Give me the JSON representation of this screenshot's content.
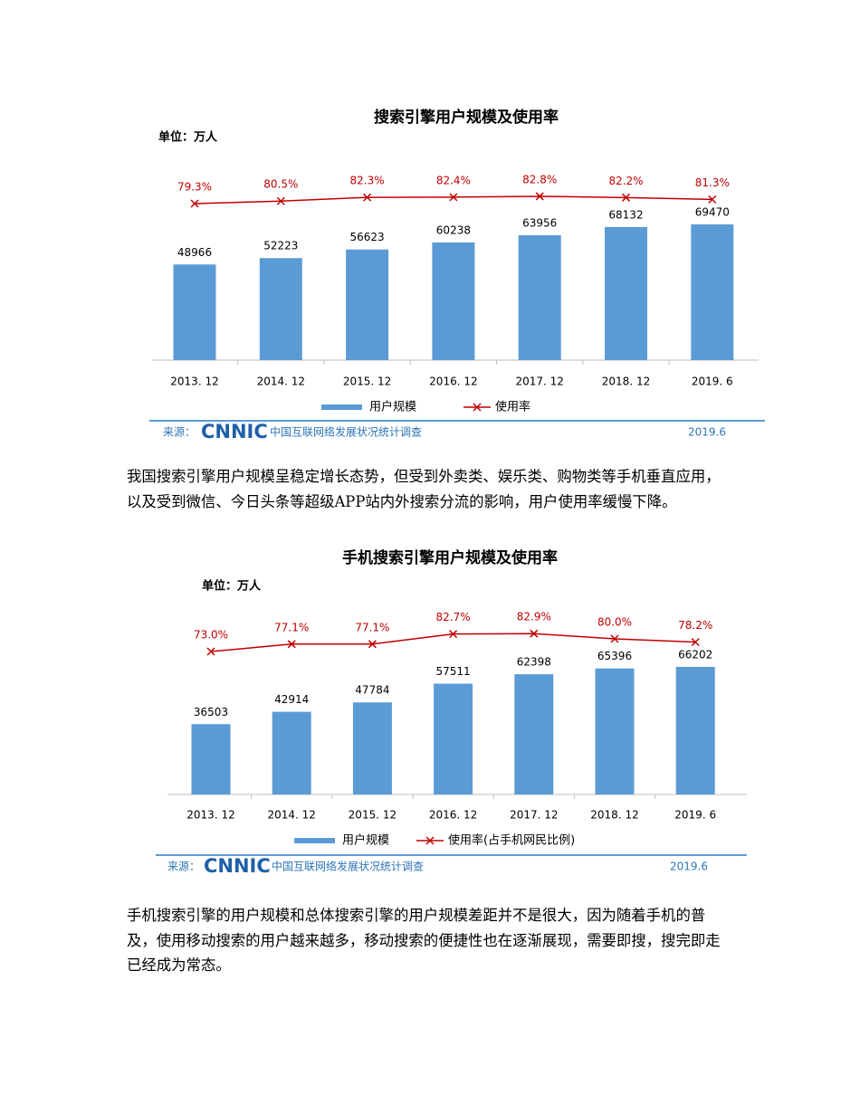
{
  "chart_data": [
    {
      "type": "bar-line",
      "title": "搜索引擎用户规模及使用率",
      "unit": "单位：万人",
      "categories": [
        "2013. 12",
        "2014. 12",
        "2015. 12",
        "2016. 12",
        "2017. 12",
        "2018. 12",
        "2019. 6"
      ],
      "series": [
        {
          "name": "用户规模",
          "type": "bar",
          "color": "#5b9bd5",
          "values": [
            48966,
            52223,
            56623,
            60238,
            63956,
            68132,
            69470
          ]
        },
        {
          "name": "使用率",
          "type": "line",
          "color": "#c00000",
          "values": [
            79.3,
            80.5,
            82.3,
            82.4,
            82.8,
            82.2,
            81.3
          ],
          "value_labels": [
            "79.3%",
            "80.5%",
            "82.3%",
            "82.4%",
            "82.8%",
            "82.2%",
            "81.3%"
          ]
        }
      ],
      "source": {
        "label": "来源：",
        "logo": "CNNIC",
        "text": "中国互联网络发展状况统计调查",
        "date": "2019.6"
      }
    },
    {
      "type": "bar-line",
      "title": "手机搜索引擎用户规模及使用率",
      "unit": "单位：万人",
      "categories": [
        "2013. 12",
        "2014. 12",
        "2015. 12",
        "2016. 12",
        "2017. 12",
        "2018. 12",
        "2019. 6"
      ],
      "series": [
        {
          "name": "用户规模",
          "type": "bar",
          "color": "#5b9bd5",
          "values": [
            36503,
            42914,
            47784,
            57511,
            62398,
            65396,
            66202
          ]
        },
        {
          "name": "使用率(占手机网民比例)",
          "type": "line",
          "color": "#c00000",
          "values": [
            73.0,
            77.1,
            77.1,
            82.7,
            82.9,
            80.0,
            78.2
          ],
          "value_labels": [
            "73.0%",
            "77.1%",
            "77.1%",
            "82.7%",
            "82.9%",
            "80.0%",
            "78.2%"
          ]
        }
      ],
      "source": {
        "label": "来源：",
        "logo": "CNNIC",
        "text": "中国互联网络发展状况统计调查",
        "date": "2019.6"
      }
    }
  ],
  "paragraphs": [
    "我国搜索引擎用户规模呈稳定增长态势，但受到外卖类、娱乐类、购物类等手机垂直应用，以及受到微信、今日头条等超级APP站内外搜索分流的影响，用户使用率缓慢下降。",
    "手机搜索引擎的用户规模和总体搜索引擎的用户规模差距并不是很大，因为随着手机的普及，使用移动搜索的用户越来越多，移动搜索的便捷性也在逐渐展现，需要即搜，搜完即走已经成为常态。"
  ]
}
